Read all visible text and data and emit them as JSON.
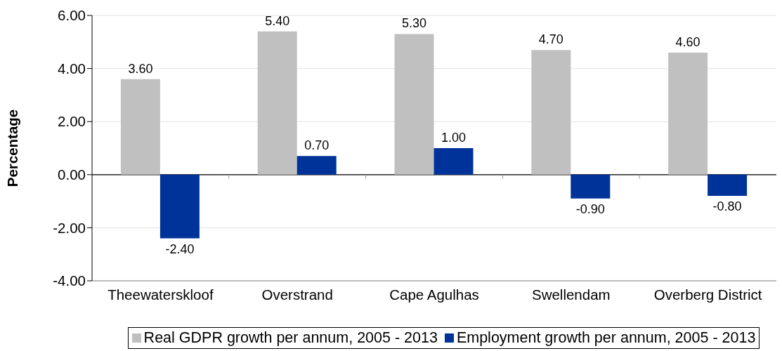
{
  "chart_data": {
    "type": "bar",
    "ylabel": "Percentage",
    "categories": [
      "Theewaterskloof",
      "Overstrand",
      "Cape Agulhas",
      "Swellendam",
      "Overberg District"
    ],
    "series": [
      {
        "name": "Real GDPR growth per annum, 2005 - 2013",
        "color": "#c0c0c0",
        "values": [
          3.6,
          5.4,
          5.3,
          4.7,
          4.6
        ],
        "value_labels": [
          "3.60",
          "5.40",
          "5.30",
          "4.70",
          "4.60"
        ]
      },
      {
        "name": "Employment growth per annum, 2005 - 2013",
        "color": "#003399",
        "values": [
          -2.4,
          0.7,
          1.0,
          -0.9,
          -0.8
        ],
        "value_labels": [
          "-2.40",
          "0.70",
          "1.00",
          "-0.90",
          "-0.80"
        ]
      }
    ],
    "ylim": [
      -4,
      6
    ],
    "yticks": [
      {
        "value": -4,
        "label": "-4.00"
      },
      {
        "value": -2,
        "label": "-2.00"
      },
      {
        "value": 0,
        "label": "0.00"
      },
      {
        "value": 2,
        "label": "2.00"
      },
      {
        "value": 4,
        "label": "4.00"
      },
      {
        "value": 6,
        "label": "6.00"
      }
    ],
    "grid": "y",
    "legend": "bottom"
  }
}
